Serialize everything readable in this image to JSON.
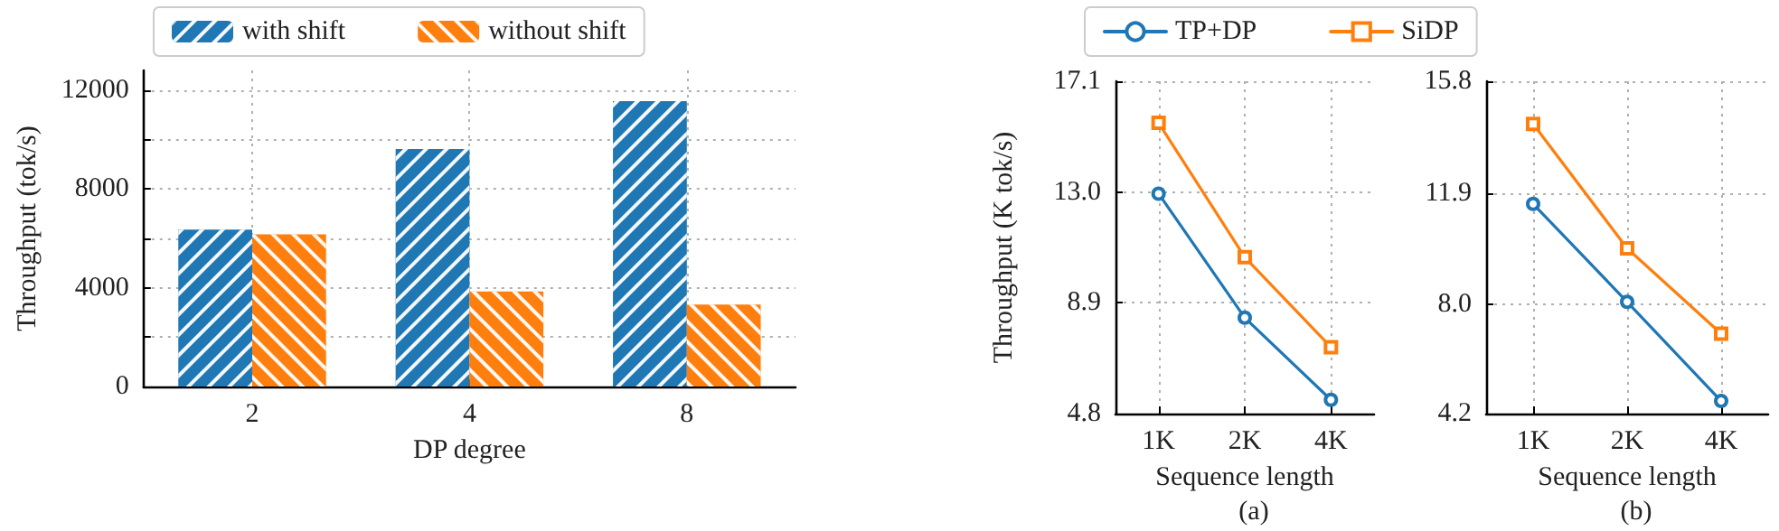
{
  "chart_data": [
    {
      "type": "bar",
      "xlabel": "DP degree",
      "ylabel": "Throughput (tok/s)",
      "categories": [
        "2",
        "4",
        "8"
      ],
      "series": [
        {
          "name": "with shift",
          "color": "#1f77b4",
          "values": [
            6350,
            9620,
            11560
          ]
        },
        {
          "name": "without shift",
          "color": "#ff7f0e",
          "values": [
            6160,
            3850,
            3320
          ]
        }
      ],
      "ylim": [
        0,
        12800
      ],
      "yticks": [
        0,
        {
          "value": 2000,
          "label": null
        },
        4000,
        {
          "value": 6000,
          "label": null
        },
        8000,
        {
          "value": 10000,
          "label": null
        },
        12000
      ],
      "grid": true,
      "legend": "top"
    },
    {
      "type": "line",
      "subtitle": "(a)",
      "xlabel": "Sequence length",
      "ylabel": "Throughput (K tok/s)",
      "categories": [
        "1K",
        "2K",
        "4K"
      ],
      "series": [
        {
          "name": "TP+DP",
          "color": "#1f77b4",
          "marker": "circle",
          "values": [
            12.94,
            8.35,
            5.31
          ]
        },
        {
          "name": "SiDP",
          "color": "#ff7f0e",
          "marker": "square",
          "values": [
            15.56,
            10.59,
            7.26
          ]
        }
      ],
      "ylim": [
        4.8,
        17.1
      ],
      "yticks": [
        4.8,
        8.9,
        {
          "value": 13,
          "label": "13.0"
        },
        17.1
      ],
      "grid": true,
      "legend": "top"
    },
    {
      "type": "line",
      "subtitle": "(b)",
      "xlabel": "Sequence length",
      "categories": [
        "1K",
        "2K",
        "4K"
      ],
      "series": [
        {
          "color": "#1f77b4",
          "marker": "circle",
          "values": [
            11.52,
            8.1,
            4.64
          ]
        },
        {
          "color": "#ff7f0e",
          "marker": "square",
          "values": [
            14.31,
            9.97,
            6.99
          ]
        }
      ],
      "ylim": [
        4.2,
        15.8
      ],
      "yticks": [
        4.2,
        {
          "value": 8,
          "label": "8.0"
        },
        11.9,
        15.8
      ],
      "grid": true
    }
  ]
}
